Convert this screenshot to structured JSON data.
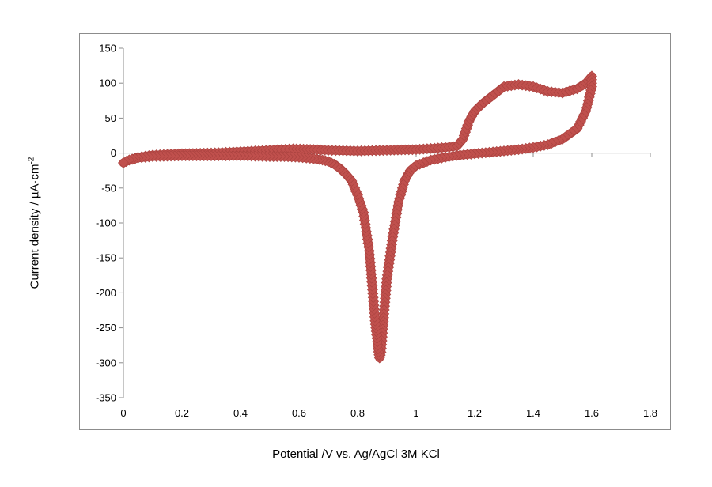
{
  "chart_data": {
    "type": "scatter",
    "title": "",
    "xlabel": "Potential /V vs. Ag/AgCl 3M KCl",
    "ylabel": "Current density / µA·cm",
    "ylabel_superscript": "-2",
    "xlim": [
      0,
      1.8
    ],
    "ylim": [
      -350,
      150
    ],
    "x_ticks": [
      "0",
      "0.2",
      "0.4",
      "0.6",
      "0.8",
      "1",
      "1.2",
      "1.4",
      "1.6",
      "1.8"
    ],
    "y_ticks": [
      "150",
      "100",
      "50",
      "0",
      "-50",
      "-100",
      "-150",
      "-200",
      "-250",
      "-300",
      "-350"
    ],
    "x_tick_values": [
      0,
      0.2,
      0.4,
      0.6,
      0.8,
      1.0,
      1.2,
      1.4,
      1.6,
      1.8
    ],
    "y_tick_values": [
      150,
      100,
      50,
      0,
      -50,
      -100,
      -150,
      -200,
      -250,
      -300,
      -350
    ],
    "grid": false,
    "legend": "none",
    "series": [
      {
        "color": "#c0504d",
        "marker": "diamond",
        "x": [
          0.0,
          0.02,
          0.05,
          0.1,
          0.2,
          0.3,
          0.4,
          0.5,
          0.58,
          0.65,
          0.7,
          0.8,
          0.9,
          1.0,
          1.1,
          1.14,
          1.16,
          1.18,
          1.2,
          1.23,
          1.27,
          1.3,
          1.35,
          1.4,
          1.45,
          1.5,
          1.55,
          1.58,
          1.6,
          1.6,
          1.58,
          1.55,
          1.5,
          1.45,
          1.4,
          1.35,
          1.3,
          1.25,
          1.2,
          1.15,
          1.1,
          1.05,
          1.0,
          0.98,
          0.96,
          0.94,
          0.92,
          0.9,
          0.89,
          0.88,
          0.875,
          0.87,
          0.86,
          0.85,
          0.84,
          0.82,
          0.8,
          0.78,
          0.76,
          0.74,
          0.72,
          0.7,
          0.68,
          0.65,
          0.6,
          0.55,
          0.5,
          0.4,
          0.3,
          0.2,
          0.1,
          0.05,
          0.02,
          0.0
        ],
        "y": [
          -14,
          -10,
          -6,
          -3,
          -1,
          0,
          2,
          4,
          6,
          5,
          4,
          3,
          4,
          5,
          8,
          10,
          20,
          45,
          60,
          72,
          85,
          95,
          98,
          95,
          88,
          86,
          92,
          100,
          110,
          95,
          60,
          35,
          20,
          12,
          8,
          5,
          3,
          1,
          -1,
          -3,
          -6,
          -10,
          -18,
          -25,
          -40,
          -70,
          -120,
          -180,
          -230,
          -285,
          -293,
          -280,
          -240,
          -190,
          -140,
          -85,
          -60,
          -40,
          -30,
          -22,
          -16,
          -12,
          -10,
          -8,
          -6,
          -5,
          -5,
          -4,
          -4,
          -4,
          -5,
          -7,
          -10,
          -14
        ]
      }
    ]
  }
}
